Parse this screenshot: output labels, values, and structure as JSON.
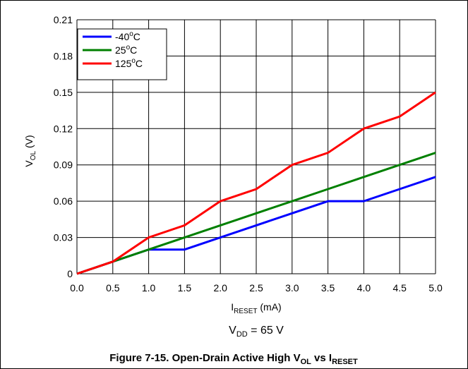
{
  "chart_data": {
    "type": "line",
    "title": "",
    "xlabel": {
      "base": "I",
      "sub": "RESET",
      "tail": " (mA)"
    },
    "ylabel": {
      "base": "V",
      "sub": "OL",
      "tail": " (V)"
    },
    "xlim": [
      0,
      5
    ],
    "ylim": [
      0,
      0.21
    ],
    "x_ticks": [
      "0.0",
      "0.5",
      "1.0",
      "1.5",
      "2.0",
      "2.5",
      "3.0",
      "3.5",
      "4.0",
      "4.5",
      "5.0"
    ],
    "y_ticks": [
      "0",
      "0.03",
      "0.06",
      "0.09",
      "0.12",
      "0.15",
      "0.18",
      "0.21"
    ],
    "grid": true,
    "legend_position": "top-left",
    "x": [
      0,
      0.5,
      1.0,
      1.5,
      2.0,
      2.5,
      3.0,
      3.5,
      4.0,
      4.5,
      5.0
    ],
    "series": [
      {
        "name": "-40",
        "unit": "C",
        "color": "#0000ff",
        "values": [
          0,
          0.01,
          0.02,
          0.02,
          0.03,
          0.04,
          0.05,
          0.06,
          0.06,
          0.07,
          0.08
        ]
      },
      {
        "name": "25",
        "unit": "C",
        "color": "#008000",
        "values": [
          0,
          0.01,
          0.02,
          0.03,
          0.04,
          0.05,
          0.06,
          0.07,
          0.08,
          0.09,
          0.1
        ]
      },
      {
        "name": "125",
        "unit": "C",
        "color": "#ff0000",
        "values": [
          0,
          0.01,
          0.03,
          0.04,
          0.06,
          0.07,
          0.09,
          0.1,
          0.12,
          0.13,
          0.15
        ]
      }
    ],
    "degree_symbol": "o",
    "condition": {
      "base": "V",
      "sub": "DD",
      "tail": " = 65 V"
    },
    "caption": {
      "prefix": "Figure 7-15. Open-Drain Active High V",
      "sub1": "OL",
      "mid": " vs I",
      "sub2": "RESET"
    }
  }
}
